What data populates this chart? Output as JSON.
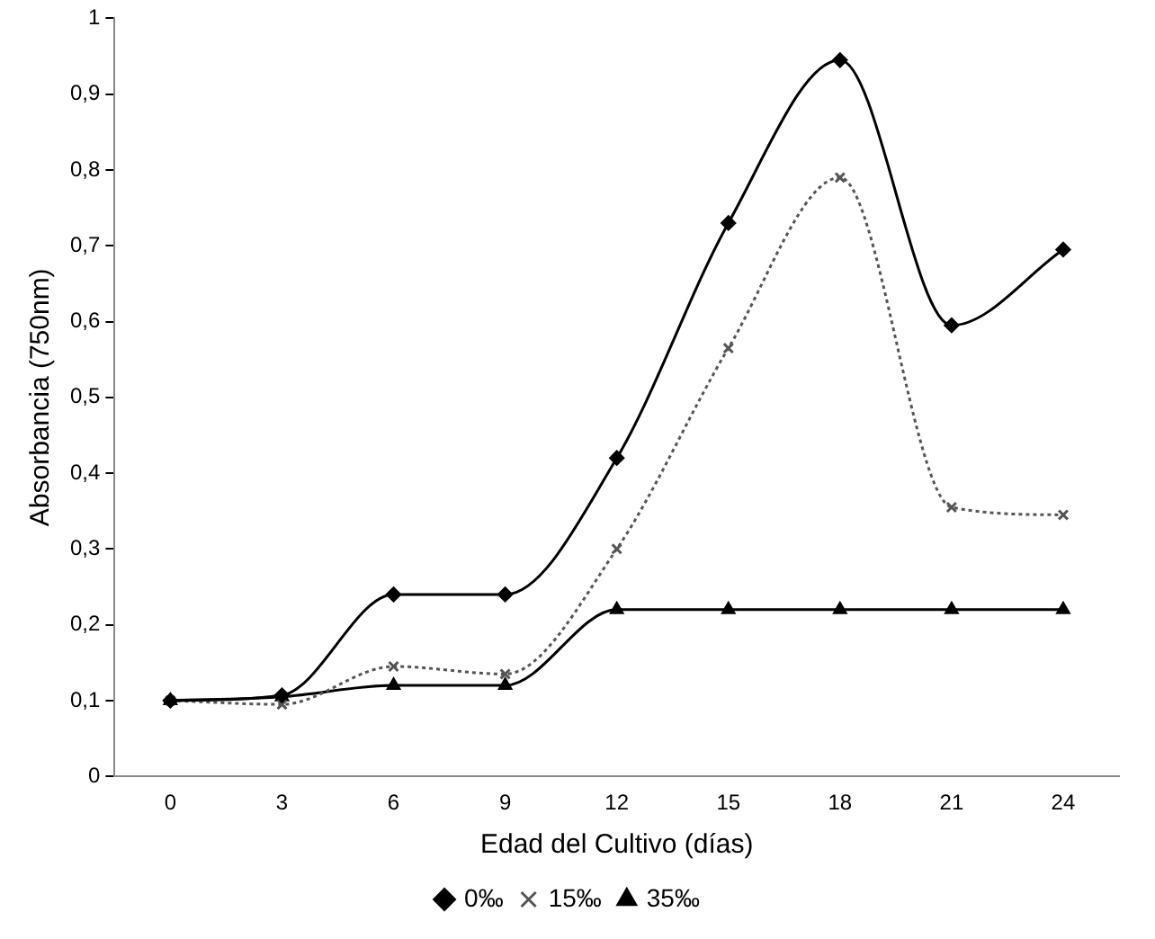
{
  "chart_data": {
    "type": "line",
    "xlabel": "Edad del Cultivo (días)",
    "ylabel": "Absorbancia (750nm)",
    "categories": [
      "0",
      "3",
      "6",
      "9",
      "12",
      "15",
      "18",
      "21",
      "24"
    ],
    "series": [
      {
        "name": "0‰",
        "color": "#000000",
        "marker": "diamond",
        "line_style": "solid",
        "values": [
          0.1,
          0.107,
          0.24,
          0.24,
          0.42,
          0.73,
          0.945,
          0.595,
          0.695
        ]
      },
      {
        "name": "15‰",
        "color": "#555555",
        "marker": "cross",
        "line_style": "dotted",
        "values": [
          0.1,
          0.095,
          0.145,
          0.135,
          0.3,
          0.565,
          0.79,
          0.355,
          0.345
        ]
      },
      {
        "name": "35‰",
        "color": "#000000",
        "marker": "triangle",
        "line_style": "solid",
        "values": [
          0.1,
          0.105,
          0.12,
          0.12,
          0.22,
          0.22,
          0.22,
          0.22,
          0.22
        ]
      }
    ],
    "ylim": [
      0,
      1
    ],
    "yticks": [
      0,
      {
        "value": 0.1,
        "label": "0,1"
      },
      {
        "value": 0.2,
        "label": "0,2"
      },
      {
        "value": 0.3,
        "label": "0,3"
      },
      {
        "value": 0.4,
        "label": "0,4"
      },
      {
        "value": 0.5,
        "label": "0,5"
      },
      {
        "value": 0.6,
        "label": "0,6"
      },
      {
        "value": 0.7,
        "label": "0,7"
      },
      {
        "value": 0.8,
        "label": "0,8"
      },
      {
        "value": 0.9,
        "label": "0,9"
      },
      1
    ],
    "grid": false,
    "legend": "bottom"
  }
}
